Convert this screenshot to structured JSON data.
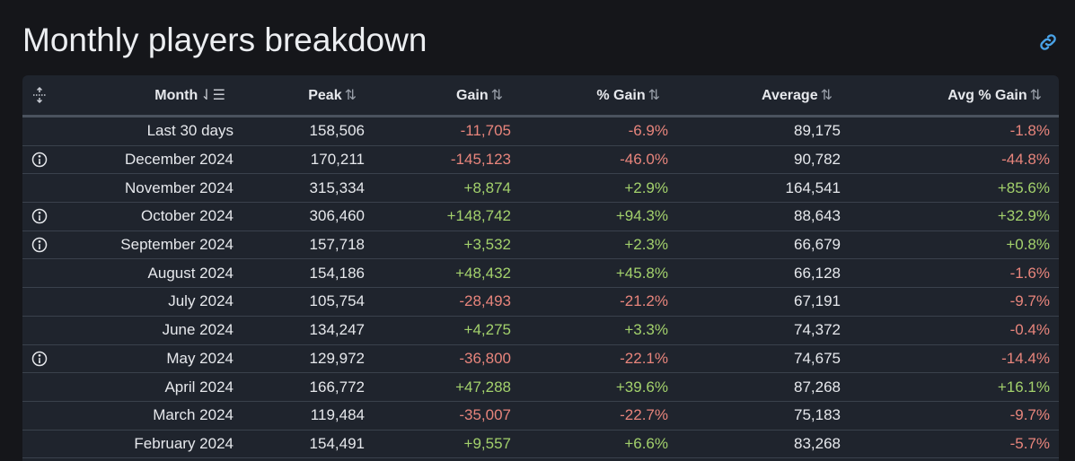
{
  "title": "Monthly players breakdown",
  "headers": {
    "month": "Month",
    "peak": "Peak",
    "gain": "Gain",
    "pgain": "% Gain",
    "avg": "Average",
    "avgpgain": "Avg % Gain"
  },
  "colors": {
    "negative": "#e8857c",
    "positive": "#a3d16c",
    "link": "#4aa3e8"
  },
  "rows": [
    {
      "month": "Last 30 days",
      "peak": "158,506",
      "gain": "-11,705",
      "pgain": "-6.9%",
      "avg": "89,175",
      "avgpgain": "-1.8%",
      "info": false
    },
    {
      "month": "December 2024",
      "peak": "170,211",
      "gain": "-145,123",
      "pgain": "-46.0%",
      "avg": "90,782",
      "avgpgain": "-44.8%",
      "info": true
    },
    {
      "month": "November 2024",
      "peak": "315,334",
      "gain": "+8,874",
      "pgain": "+2.9%",
      "avg": "164,541",
      "avgpgain": "+85.6%",
      "info": false
    },
    {
      "month": "October 2024",
      "peak": "306,460",
      "gain": "+148,742",
      "pgain": "+94.3%",
      "avg": "88,643",
      "avgpgain": "+32.9%",
      "info": true
    },
    {
      "month": "September 2024",
      "peak": "157,718",
      "gain": "+3,532",
      "pgain": "+2.3%",
      "avg": "66,679",
      "avgpgain": "+0.8%",
      "info": true
    },
    {
      "month": "August 2024",
      "peak": "154,186",
      "gain": "+48,432",
      "pgain": "+45.8%",
      "avg": "66,128",
      "avgpgain": "-1.6%",
      "info": false
    },
    {
      "month": "July 2024",
      "peak": "105,754",
      "gain": "-28,493",
      "pgain": "-21.2%",
      "avg": "67,191",
      "avgpgain": "-9.7%",
      "info": false
    },
    {
      "month": "June 2024",
      "peak": "134,247",
      "gain": "+4,275",
      "pgain": "+3.3%",
      "avg": "74,372",
      "avgpgain": "-0.4%",
      "info": false
    },
    {
      "month": "May 2024",
      "peak": "129,972",
      "gain": "-36,800",
      "pgain": "-22.1%",
      "avg": "74,675",
      "avgpgain": "-14.4%",
      "info": true
    },
    {
      "month": "April 2024",
      "peak": "166,772",
      "gain": "+47,288",
      "pgain": "+39.6%",
      "avg": "87,268",
      "avgpgain": "+16.1%",
      "info": false
    },
    {
      "month": "March 2024",
      "peak": "119,484",
      "gain": "-35,007",
      "pgain": "-22.7%",
      "avg": "75,183",
      "avgpgain": "-9.7%",
      "info": false
    },
    {
      "month": "February 2024",
      "peak": "154,491",
      "gain": "+9,557",
      "pgain": "+6.6%",
      "avg": "83,268",
      "avgpgain": "-5.7%",
      "info": false
    }
  ]
}
